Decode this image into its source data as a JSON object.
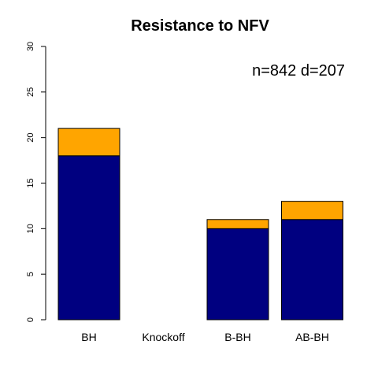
{
  "chart_data": {
    "type": "bar",
    "stacked": true,
    "title": "Resistance to NFV",
    "annotation": "n=842 d=207",
    "annotation_position": "top-right",
    "categories": [
      "BH",
      "Knockoff",
      "B-BH",
      "AB-BH"
    ],
    "series": [
      {
        "values": [
          18,
          0,
          10,
          11
        ],
        "color": "#000080"
      },
      {
        "values": [
          3,
          0,
          1,
          2
        ],
        "color": "#FFA500"
      }
    ],
    "ylim": [
      0,
      30
    ],
    "yticks": [
      0,
      5,
      10,
      15,
      20,
      25,
      30
    ],
    "grid": false,
    "legend": "none"
  }
}
